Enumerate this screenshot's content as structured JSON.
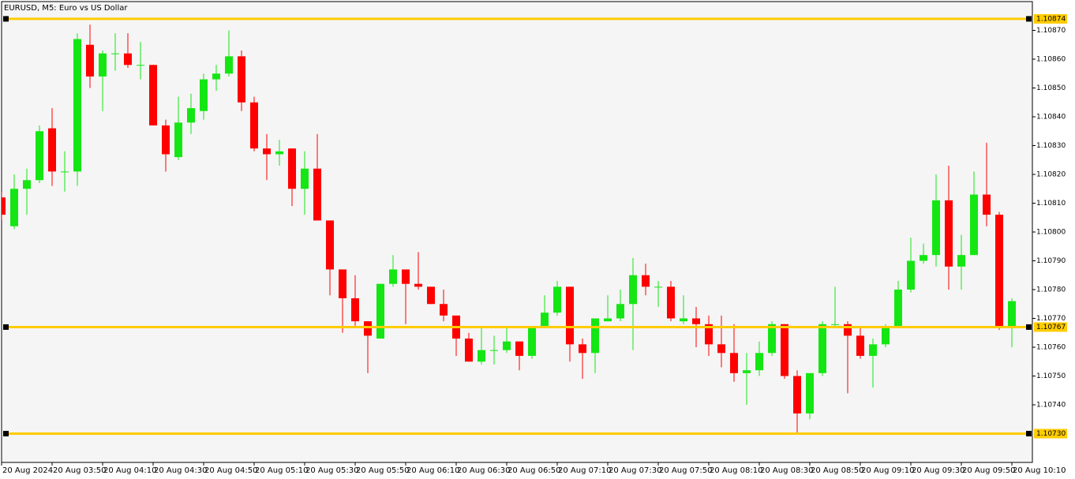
{
  "chart_data": {
    "type": "candlestick",
    "title": "EURUSD, M5:  Euro vs US Dollar",
    "categories": [
      "20 Aug 2024",
      null,
      null,
      null,
      "20 Aug 03:50",
      null,
      null,
      null,
      "20 Aug 04:10",
      null,
      null,
      null,
      "20 Aug 04:30",
      null,
      null,
      null,
      "20 Aug 04:50",
      null,
      null,
      null,
      "20 Aug 05:10",
      null,
      null,
      null,
      "20 Aug 05:30",
      null,
      null,
      null,
      "20 Aug 05:50",
      null,
      null,
      null,
      "20 Aug 06:10",
      null,
      null,
      null,
      "20 Aug 06:30",
      null,
      null,
      null,
      "20 Aug 06:50",
      null,
      null,
      null,
      "20 Aug 07:10",
      null,
      null,
      null,
      "20 Aug 07:30",
      null,
      null,
      null,
      "20 Aug 07:50",
      null,
      null,
      null,
      "20 Aug 08:10",
      null,
      null,
      null,
      "20 Aug 08:30",
      null,
      null,
      null,
      "20 Aug 08:50",
      null,
      null,
      null,
      "20 Aug 09:10",
      null,
      null,
      null,
      "20 Aug 09:30",
      null,
      null,
      null,
      "20 Aug 09:50",
      null,
      null,
      null,
      "20 Aug 10:10"
    ],
    "open": [
      1.10812,
      1.10802,
      1.10815,
      1.10818,
      1.10836,
      1.10821,
      1.10821,
      1.10865,
      1.10854,
      1.10862,
      1.10862,
      1.10858,
      1.10858,
      1.10837,
      1.10826,
      1.10838,
      1.10842,
      1.10853,
      1.10855,
      1.10861,
      1.10845,
      1.10829,
      1.10827,
      1.10829,
      1.10815,
      1.10822,
      1.10804,
      1.10787,
      1.10777,
      1.10769,
      1.10763,
      1.10782,
      1.10787,
      1.10782,
      1.10781,
      1.10775,
      1.10771,
      1.10763,
      1.10755,
      1.10759,
      1.10759,
      1.10762,
      1.10757,
      1.10767,
      1.10772,
      1.10781,
      1.10761,
      1.10758,
      1.10769,
      1.1077,
      1.10775,
      1.10785,
      1.10781,
      1.10781,
      1.10769,
      1.1077,
      1.10768,
      1.10761,
      1.10758,
      1.10751,
      1.10752,
      1.10758,
      1.10768,
      1.1075,
      1.10737,
      1.10751,
      1.10768,
      1.10768,
      1.10764,
      1.10757,
      1.10761,
      1.10767,
      1.1078,
      1.1079,
      1.10792,
      1.10811,
      1.10788,
      1.10792,
      1.10813,
      1.10806,
      1.10767
    ],
    "high": [
      1.10814,
      1.1082,
      1.10822,
      1.10837,
      1.10843,
      1.10828,
      1.10869,
      1.10872,
      1.10863,
      1.10869,
      1.10869,
      1.10866,
      1.10858,
      1.10839,
      1.10847,
      1.10848,
      1.10855,
      1.10858,
      1.1087,
      1.10863,
      1.10847,
      1.10834,
      1.10832,
      1.10829,
      1.10828,
      1.10834,
      1.10804,
      1.10787,
      1.10785,
      1.10769,
      1.10782,
      1.10792,
      1.10787,
      1.10793,
      1.10781,
      1.1078,
      1.10771,
      1.10765,
      1.10767,
      1.10764,
      1.10767,
      1.10762,
      1.10767,
      1.10778,
      1.10783,
      1.10781,
      1.10763,
      1.1077,
      1.10778,
      1.1078,
      1.10791,
      1.10789,
      1.10783,
      1.10783,
      1.10778,
      1.10774,
      1.10771,
      1.10771,
      1.10768,
      1.10758,
      1.10762,
      1.10769,
      1.10768,
      1.10752,
      1.10751,
      1.10769,
      1.10781,
      1.10769,
      1.10767,
      1.10763,
      1.10768,
      1.10783,
      1.10798,
      1.10796,
      1.1082,
      1.10823,
      1.10799,
      1.10821,
      1.10831,
      1.10807,
      1.10777
    ],
    "low": [
      1.10804,
      1.10801,
      1.10806,
      1.10817,
      1.10816,
      1.10814,
      1.10816,
      1.1085,
      1.10842,
      1.10856,
      1.10857,
      1.10853,
      1.10837,
      1.10821,
      1.10825,
      1.10834,
      1.10839,
      1.10849,
      1.10854,
      1.10842,
      1.10828,
      1.10818,
      1.10823,
      1.10809,
      1.10806,
      1.10804,
      1.10778,
      1.10765,
      1.10767,
      1.10751,
      1.10763,
      1.10781,
      1.10768,
      1.1078,
      1.10775,
      1.10769,
      1.10757,
      1.10755,
      1.10754,
      1.10754,
      1.10758,
      1.10752,
      1.10756,
      1.10767,
      1.10771,
      1.10755,
      1.10749,
      1.10751,
      1.10769,
      1.10769,
      1.10759,
      1.10778,
      1.10774,
      1.10769,
      1.10768,
      1.1076,
      1.10757,
      1.10753,
      1.10748,
      1.1074,
      1.1075,
      1.10757,
      1.10749,
      1.1073,
      1.10735,
      1.1075,
      1.10767,
      1.10744,
      1.10756,
      1.10746,
      1.1076,
      1.10767,
      1.10779,
      1.10789,
      1.10788,
      1.1078,
      1.1078,
      1.10792,
      1.10802,
      1.10766,
      1.1076
    ],
    "close": [
      1.10806,
      1.10815,
      1.10818,
      1.10835,
      1.10821,
      1.10821,
      1.10867,
      1.10854,
      1.10862,
      1.10862,
      1.10858,
      1.10858,
      1.10837,
      1.10827,
      1.10838,
      1.10843,
      1.10853,
      1.10855,
      1.10861,
      1.10845,
      1.10829,
      1.10827,
      1.10828,
      1.10815,
      1.10822,
      1.10804,
      1.10787,
      1.10777,
      1.10769,
      1.10764,
      1.10782,
      1.10787,
      1.10782,
      1.10781,
      1.10775,
      1.10771,
      1.10763,
      1.10755,
      1.10759,
      1.10759,
      1.10762,
      1.10757,
      1.10767,
      1.10772,
      1.10781,
      1.10761,
      1.10758,
      1.1077,
      1.1077,
      1.10775,
      1.10785,
      1.10781,
      1.10781,
      1.1077,
      1.1077,
      1.10768,
      1.10761,
      1.10758,
      1.10751,
      1.10752,
      1.10758,
      1.10768,
      1.1075,
      1.10737,
      1.10751,
      1.10768,
      1.10768,
      1.10764,
      1.10757,
      1.10761,
      1.10767,
      1.1078,
      1.1079,
      1.10792,
      1.10811,
      1.10788,
      1.10792,
      1.10813,
      1.10806,
      1.10767,
      1.10776
    ],
    "up_color": "#14e614",
    "down_color": "#ff0000",
    "ylim": [
      1.1072,
      1.1088
    ],
    "yticks": [
      {
        "value": 1.1087,
        "label": "1.10870"
      },
      {
        "value": 1.1086,
        "label": "1.10860"
      },
      {
        "value": 1.1085,
        "label": "1.10850"
      },
      {
        "value": 1.1084,
        "label": "1.10840"
      },
      {
        "value": 1.1083,
        "label": "1.10830"
      },
      {
        "value": 1.1082,
        "label": "1.10820"
      },
      {
        "value": 1.1081,
        "label": "1.10810"
      },
      {
        "value": 1.108,
        "label": "1.10800"
      },
      {
        "value": 1.1079,
        "label": "1.10790"
      },
      {
        "value": 1.1078,
        "label": "1.10780"
      },
      {
        "value": 1.1077,
        "label": "1.10770"
      },
      {
        "value": 1.1076,
        "label": "1.10760"
      },
      {
        "value": 1.1075,
        "label": "1.10750"
      },
      {
        "value": 1.1074,
        "label": "1.10740"
      }
    ],
    "levels": [
      1.10874,
      1.10767,
      {
        "value": 1.1073,
        "label": "1.10730"
      }
    ],
    "level_color": "#ffcc00",
    "grid": false
  }
}
